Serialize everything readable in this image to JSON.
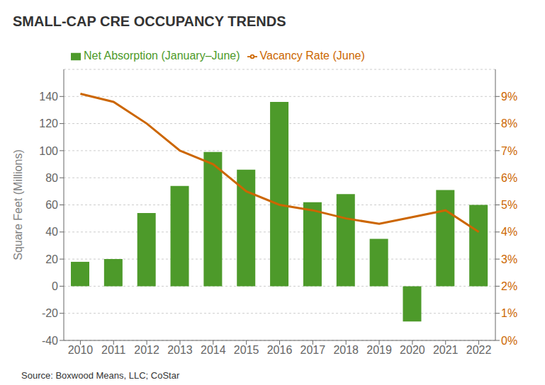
{
  "chart_data": {
    "type": "bar",
    "title": "SMALL-CAP CRE OCCUPANCY TRENDS",
    "ylabel": "Square Feet (Millions)",
    "annotations": [
      "Source: Boxwood Means, LLC; CoStar"
    ],
    "categories": [
      "2010",
      "2011",
      "2012",
      "2013",
      "2014",
      "2015",
      "2016",
      "2017",
      "2018",
      "2019",
      "2020",
      "2021",
      "2022"
    ],
    "series": [
      {
        "name": "Net Absorption (January–June)",
        "type": "bar",
        "color": "#4d9a2a",
        "values": [
          18,
          20,
          54,
          74,
          99,
          86,
          136,
          62,
          68,
          35,
          -26,
          71,
          60
        ]
      },
      {
        "name": "Vacancy Rate (June)",
        "type": "line",
        "color": "#cc6600",
        "axis": "y2",
        "values": [
          9.1,
          8.8,
          8.0,
          7.0,
          6.5,
          5.5,
          5.0,
          4.8,
          4.5,
          4.3,
          4.55,
          4.8,
          4.0
        ]
      }
    ],
    "ylim": [
      -40,
      160
    ],
    "yticks": [
      -40,
      -20,
      0,
      20,
      40,
      60,
      80,
      100,
      120,
      140
    ],
    "y2lim": [
      0,
      10
    ],
    "y2ticks": [
      {
        "value": 0,
        "label": "0%"
      },
      {
        "value": 1,
        "label": "1%"
      },
      {
        "value": 2,
        "label": "2%"
      },
      {
        "value": 3,
        "label": "3%"
      },
      {
        "value": 4,
        "label": "4%"
      },
      {
        "value": 5,
        "label": "5%"
      },
      {
        "value": 6,
        "label": "6%"
      },
      {
        "value": 7,
        "label": "7%"
      },
      {
        "value": 8,
        "label": "8%"
      },
      {
        "value": 9,
        "label": "9%"
      }
    ],
    "grid": true,
    "legend": "top"
  }
}
